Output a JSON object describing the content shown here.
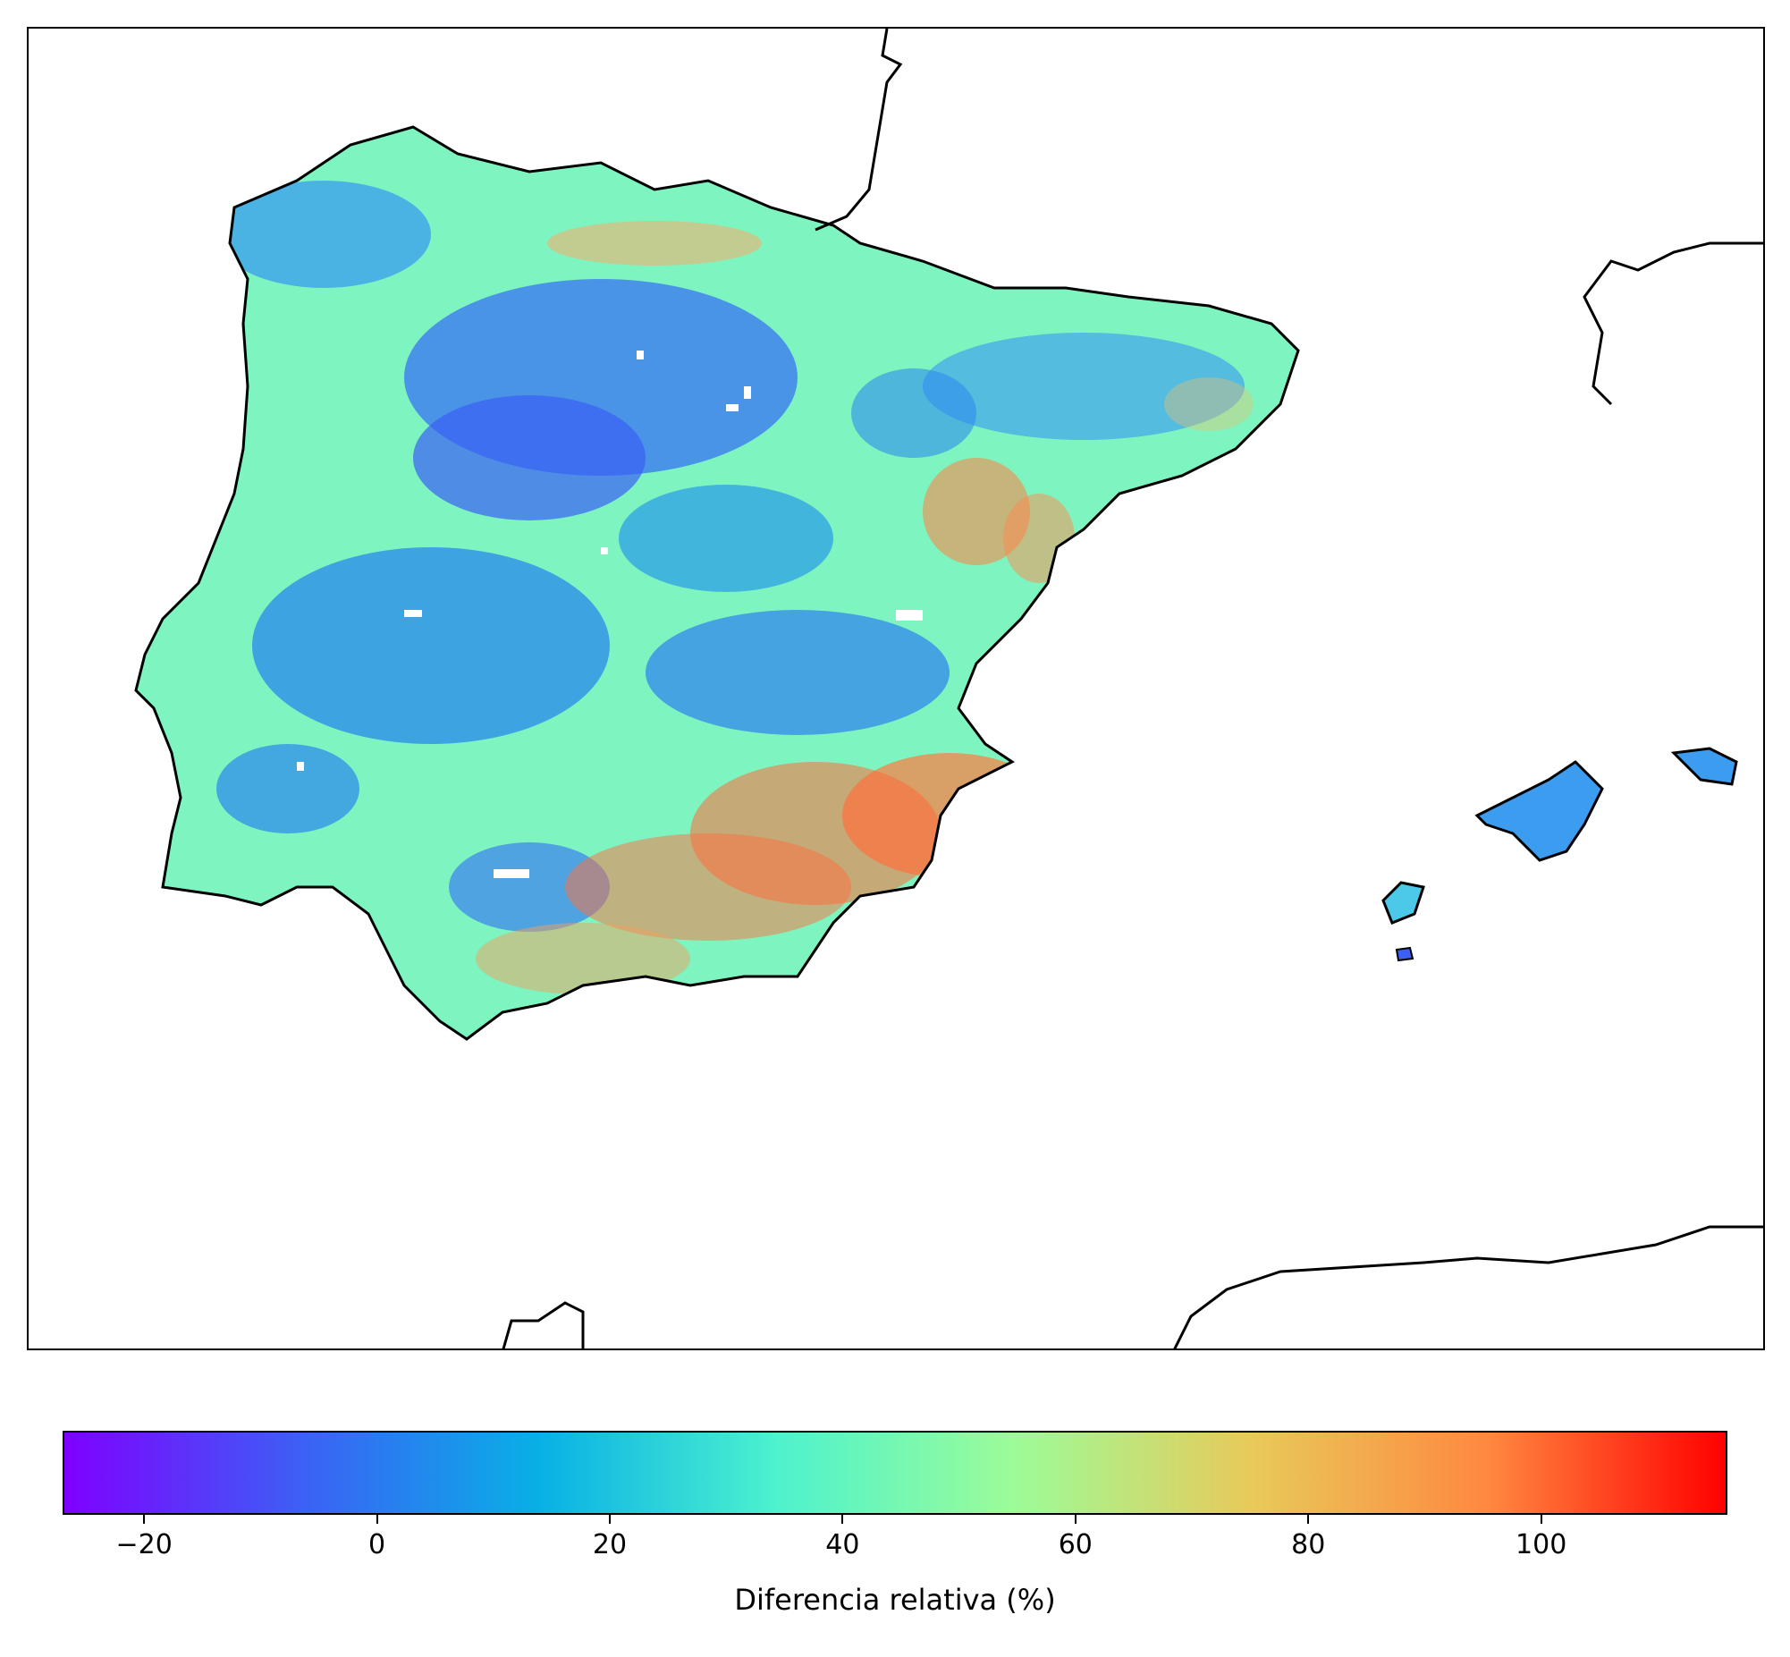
{
  "colorbar": {
    "label": "Diferencia relativa (%)",
    "vmin": -27,
    "vmax": 116,
    "ticks": [
      -20,
      0,
      20,
      40,
      60,
      80,
      100
    ],
    "tick_labels": [
      "−20",
      "0",
      "20",
      "40",
      "60",
      "80",
      "100"
    ],
    "colormap": "rainbow",
    "colors": [
      "#7f00ff",
      "#3c60f5",
      "#08b0e6",
      "#4df2ce",
      "#9cfc98",
      "#e8ca5a",
      "#ff8840",
      "#ff0000"
    ]
  },
  "map": {
    "region": "Iberian Peninsula and Balearic Islands",
    "coastline_color": "#000000",
    "missing_value_color": "#ffffff"
  }
}
